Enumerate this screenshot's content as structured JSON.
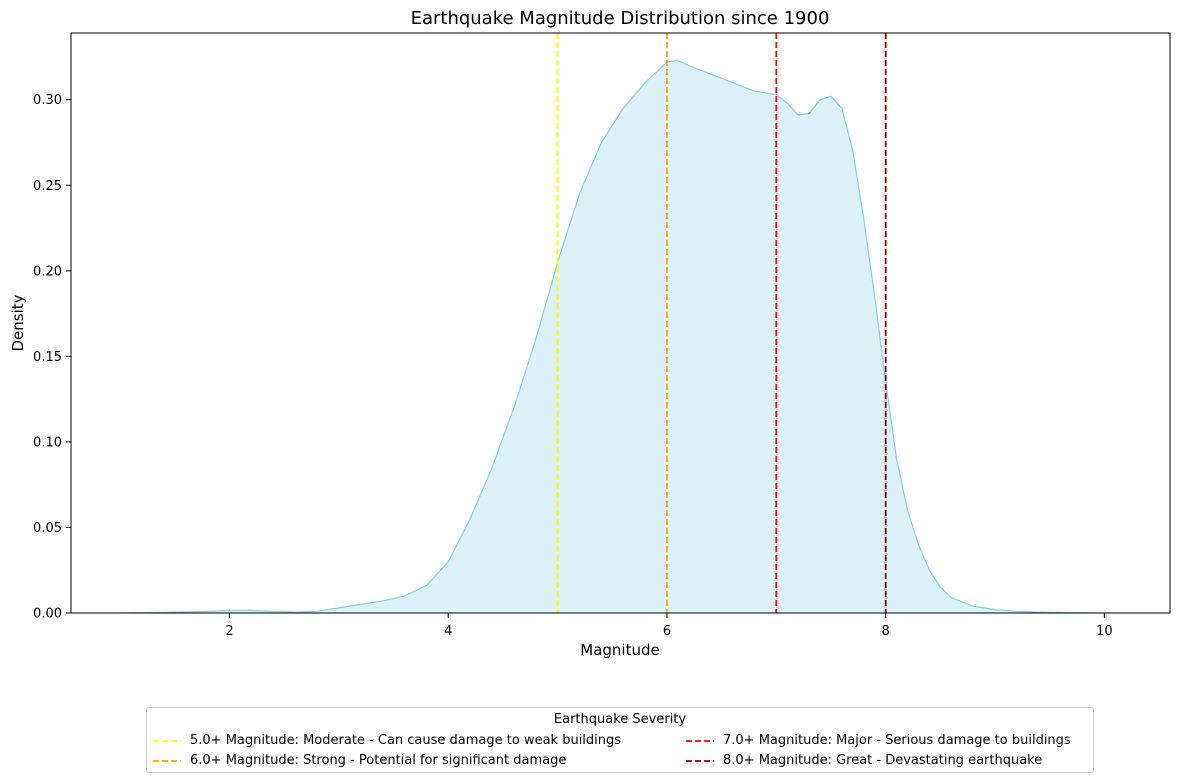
{
  "chart_data": {
    "type": "area",
    "title": "Earthquake Magnitude Distribution since 1900",
    "xlabel": "Magnitude",
    "ylabel": "Density",
    "xlim": [
      0.55,
      10.6
    ],
    "ylim": [
      0,
      0.339
    ],
    "x_ticks": [
      2,
      4,
      6,
      8,
      10
    ],
    "x_tick_labels": [
      "2",
      "4",
      "6",
      "8",
      "10"
    ],
    "y_ticks": [
      0.0,
      0.05,
      0.1,
      0.15,
      0.2,
      0.25,
      0.3
    ],
    "y_tick_labels": [
      "0.00",
      "0.05",
      "0.10",
      "0.15",
      "0.20",
      "0.25",
      "0.30"
    ],
    "grid": false,
    "series": [
      {
        "fill_color": "#DDF1F8",
        "line_color": "#87CEEB",
        "x": [
          1.0,
          1.5,
          1.8,
          2.0,
          2.2,
          2.4,
          2.6,
          2.8,
          3.0,
          3.2,
          3.4,
          3.6,
          3.8,
          4.0,
          4.2,
          4.4,
          4.6,
          4.8,
          5.0,
          5.2,
          5.4,
          5.6,
          5.8,
          6.0,
          6.1,
          6.2,
          6.4,
          6.6,
          6.8,
          7.0,
          7.1,
          7.2,
          7.3,
          7.4,
          7.5,
          7.6,
          7.7,
          7.8,
          7.9,
          8.0,
          8.1,
          8.2,
          8.3,
          8.4,
          8.5,
          8.6,
          8.8,
          9.0,
          9.2,
          9.4,
          9.6,
          9.8,
          10.0
        ],
        "y": [
          0.0,
          0.0005,
          0.001,
          0.0015,
          0.0015,
          0.001,
          0.0005,
          0.001,
          0.003,
          0.005,
          0.007,
          0.01,
          0.016,
          0.03,
          0.055,
          0.085,
          0.12,
          0.16,
          0.205,
          0.245,
          0.275,
          0.295,
          0.31,
          0.322,
          0.323,
          0.32,
          0.315,
          0.31,
          0.305,
          0.303,
          0.298,
          0.291,
          0.292,
          0.3,
          0.302,
          0.295,
          0.27,
          0.23,
          0.185,
          0.135,
          0.09,
          0.06,
          0.04,
          0.025,
          0.015,
          0.009,
          0.004,
          0.002,
          0.001,
          0.0005,
          0.0003,
          0.0001,
          0.0
        ]
      }
    ],
    "reference_lines": [
      {
        "x": 5.0,
        "color": "#FFFF00",
        "label": "5.0+ Magnitude: Moderate - Can cause damage to weak buildings"
      },
      {
        "x": 6.0,
        "color": "#FFA500",
        "label": "6.0+ Magnitude: Strong - Potential for significant damage"
      },
      {
        "x": 7.0,
        "color": "#FF0000",
        "label": "7.0+ Magnitude: Major - Serious damage to buildings"
      },
      {
        "x": 8.0,
        "color": "#8B0000",
        "label": "8.0+ Magnitude: Great - Devastating earthquake"
      }
    ],
    "legend": {
      "title": "Earthquake Severity",
      "placement": "bottom-center, below chart"
    }
  }
}
